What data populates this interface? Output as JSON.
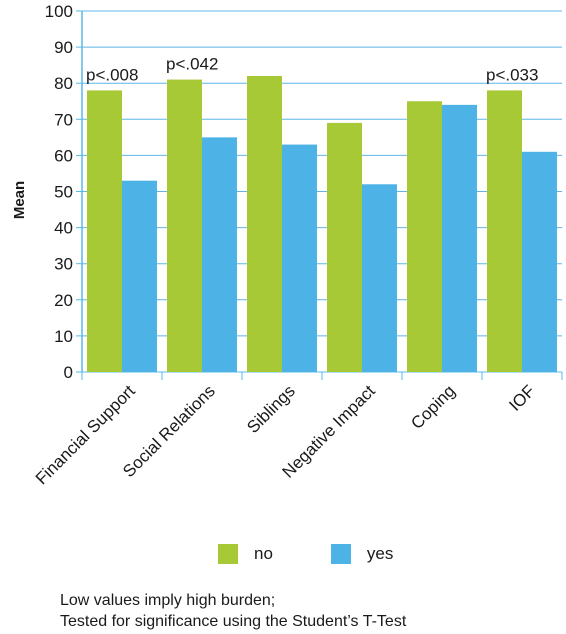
{
  "chart_data": {
    "type": "bar",
    "categories": [
      "Financial Support",
      "Social Relations",
      "Siblings",
      "Negative Impact",
      "Coping",
      "IOF"
    ],
    "series": [
      {
        "name": "no",
        "values": [
          78,
          81,
          82,
          69,
          75,
          78
        ],
        "color": "#a8c936"
      },
      {
        "name": "yes",
        "values": [
          53,
          65,
          63,
          52,
          74,
          61
        ],
        "color": "#4db3e6"
      }
    ],
    "ylabel": "Mean",
    "xlabel": "",
    "ylim": [
      0,
      100
    ],
    "yticks": [
      0,
      10,
      20,
      30,
      40,
      50,
      60,
      70,
      80,
      90,
      100
    ],
    "grid": true,
    "grid_color": "#5bb8e8",
    "annotations": [
      {
        "category": "Financial Support",
        "text": "p<.008"
      },
      {
        "category": "Social Relations",
        "text": "p<.042"
      },
      {
        "category": "IOF",
        "text": "p<.033"
      }
    ],
    "legend_position": "bottom"
  },
  "legend": {
    "no": "no",
    "yes": "yes"
  },
  "footnote": {
    "line1": "Low values imply high burden;",
    "line2": "Tested for significance using the Student’s T-Test"
  }
}
